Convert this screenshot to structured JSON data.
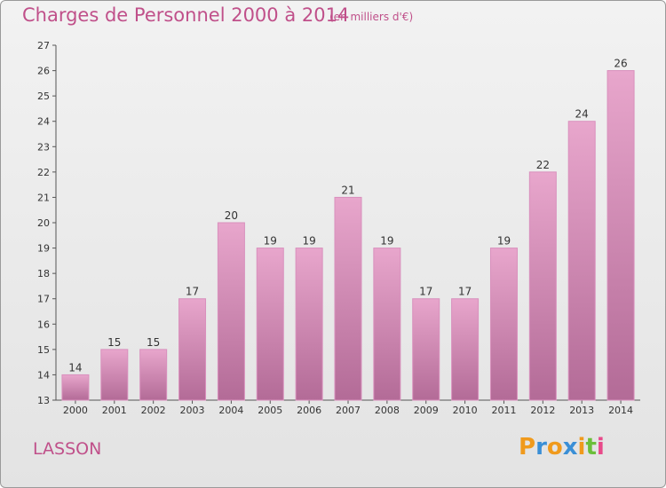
{
  "title": "Charges de Personnel 2000 à 2014",
  "subtitle": "(en milliers d'€)",
  "commune": "LASSON",
  "logo": {
    "letters": [
      "P",
      "r",
      "o",
      "x",
      "i",
      "t",
      "i"
    ],
    "colors": [
      "#f09a1c",
      "#3a8fd6",
      "#f09a1c",
      "#3a8fd6",
      "#f09a1c",
      "#6bbf3a",
      "#e84a8a"
    ]
  },
  "colors": {
    "bar_top": "#e8a6cc",
    "bar_bottom": "#b36b97",
    "bar_edge": "#d990bd",
    "text": "#c0508a"
  },
  "chart_data": {
    "type": "bar",
    "categories": [
      "2000",
      "2001",
      "2002",
      "2003",
      "2004",
      "2005",
      "2006",
      "2007",
      "2008",
      "2009",
      "2010",
      "2011",
      "2012",
      "2013",
      "2014"
    ],
    "values": [
      14,
      15,
      15,
      17,
      20,
      19,
      19,
      21,
      19,
      17,
      17,
      19,
      22,
      24,
      26
    ],
    "ylim": [
      13,
      27
    ],
    "yticks": [
      13,
      14,
      15,
      16,
      17,
      18,
      19,
      20,
      21,
      22,
      23,
      24,
      25,
      26,
      27
    ],
    "grid": false
  }
}
